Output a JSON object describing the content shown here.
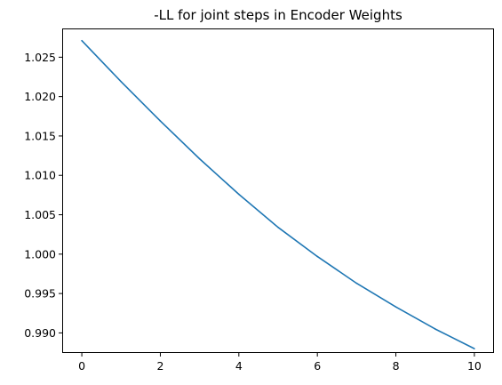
{
  "chart_data": {
    "type": "line",
    "title": "-LL for joint steps in Encoder Weights",
    "xlabel": "",
    "ylabel": "",
    "xlim": [
      -0.5,
      10.5
    ],
    "ylim": [
      0.98745,
      1.02865
    ],
    "xticks": [
      0,
      2,
      4,
      6,
      8,
      10
    ],
    "xtick_labels": [
      "0",
      "2",
      "4",
      "6",
      "8",
      "10"
    ],
    "yticks": [
      0.99,
      0.995,
      1.0,
      1.005,
      1.01,
      1.015,
      1.02,
      1.025
    ],
    "ytick_labels": [
      "0.990",
      "0.995",
      "1.000",
      "1.005",
      "1.010",
      "1.015",
      "1.020",
      "1.025"
    ],
    "grid": false,
    "series": [
      {
        "color": "#1f77b4",
        "x": [
          0,
          1,
          2,
          3,
          4,
          5,
          6,
          7,
          8,
          9,
          10
        ],
        "y": [
          1.0271,
          1.0219,
          1.0169,
          1.0121,
          1.0076,
          1.0034,
          0.9997,
          0.9963,
          0.9933,
          0.9905,
          0.988
        ]
      }
    ]
  }
}
